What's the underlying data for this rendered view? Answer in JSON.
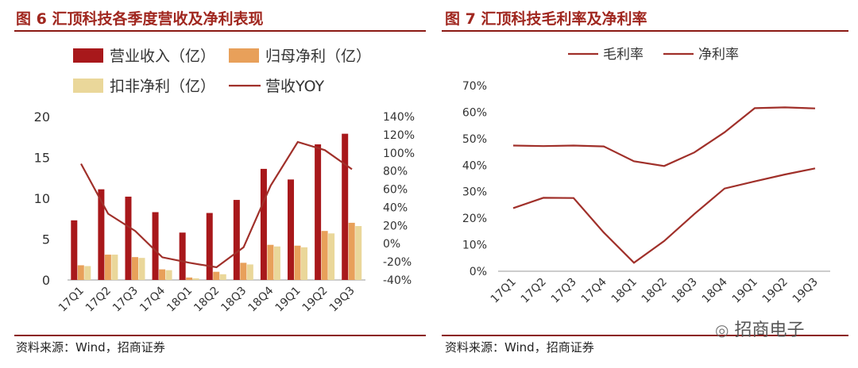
{
  "left": {
    "title": "图 6 汇顶科技各季度营收及净利表现",
    "source": "资料来源：Wind，招商证券"
  },
  "right": {
    "title": "图 7 汇顶科技毛利率及净利率",
    "source": "资料来源：Wind，招商证券"
  },
  "watermark": "招商电子",
  "colors": {
    "revenue": "#a8181b",
    "parent_net": "#e8a05a",
    "deducted_net": "#ead79a",
    "line": "#a0302a",
    "rule": "#8b1a14"
  },
  "chart_data": [
    {
      "type": "bar",
      "categories": [
        "17Q1",
        "17Q2",
        "17Q3",
        "17Q4",
        "18Q1",
        "18Q2",
        "18Q3",
        "18Q4",
        "19Q1",
        "19Q2",
        "19Q3"
      ],
      "series": [
        {
          "name": "营业收入（亿）",
          "type": "bar",
          "axis": "left",
          "values": [
            7.3,
            11.1,
            10.2,
            8.3,
            5.8,
            8.2,
            9.8,
            13.6,
            12.3,
            16.6,
            17.9
          ]
        },
        {
          "name": "归母净利（亿）",
          "type": "bar",
          "axis": "left",
          "values": [
            1.8,
            3.1,
            2.8,
            1.3,
            0.3,
            1.0,
            2.1,
            4.3,
            4.2,
            6.0,
            7.0
          ]
        },
        {
          "name": "扣非净利（亿）",
          "type": "bar",
          "axis": "left",
          "values": [
            1.7,
            3.1,
            2.7,
            1.2,
            0.2,
            0.7,
            1.9,
            4.1,
            4.0,
            5.7,
            6.6
          ]
        },
        {
          "name": "营收YOY",
          "type": "line",
          "axis": "right",
          "values": [
            0.88,
            0.33,
            0.14,
            -0.15,
            -0.21,
            -0.26,
            -0.04,
            0.64,
            1.12,
            1.03,
            0.82
          ]
        }
      ],
      "y_left": {
        "min": 0,
        "max": 20,
        "ticks": [
          "0",
          "5",
          "10",
          "15",
          "20"
        ]
      },
      "y_right": {
        "min": -0.4,
        "max": 1.4,
        "ticks": [
          "-40%",
          "-20%",
          "0%",
          "20%",
          "40%",
          "60%",
          "80%",
          "100%",
          "120%",
          "140%"
        ]
      },
      "legend": "top"
    },
    {
      "type": "line",
      "categories": [
        "17Q1",
        "17Q2",
        "17Q3",
        "17Q4",
        "18Q1",
        "18Q2",
        "18Q3",
        "18Q4",
        "19Q1",
        "19Q2",
        "19Q3"
      ],
      "series": [
        {
          "name": "毛利率",
          "values": [
            0.474,
            0.472,
            0.474,
            0.471,
            0.415,
            0.397,
            0.448,
            0.524,
            0.615,
            0.618,
            0.614
          ]
        },
        {
          "name": "净利率",
          "values": [
            0.238,
            0.277,
            0.276,
            0.146,
            0.032,
            0.114,
            0.216,
            0.312,
            0.339,
            0.365,
            0.388
          ]
        }
      ],
      "y": {
        "min": 0,
        "max": 0.7,
        "ticks": [
          "0%",
          "10%",
          "20%",
          "30%",
          "40%",
          "50%",
          "60%",
          "70%"
        ]
      },
      "legend": "top"
    }
  ]
}
